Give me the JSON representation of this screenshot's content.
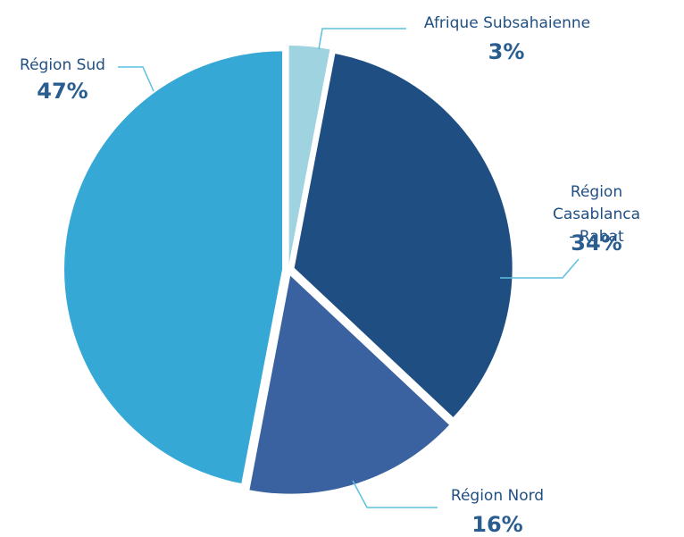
{
  "chart_data": {
    "type": "pie",
    "categories": [
      "Afrique Subsahaienne",
      "Région\nCasablanca - Rabat",
      "Région Nord",
      "Région Sud"
    ],
    "values": [
      3,
      34,
      16,
      47
    ],
    "value_labels": [
      "3%",
      "34%",
      "16%",
      "47%"
    ],
    "colors": [
      "#9fd3df",
      "#1f4f82",
      "#3a62a0",
      "#35a8d6"
    ]
  }
}
